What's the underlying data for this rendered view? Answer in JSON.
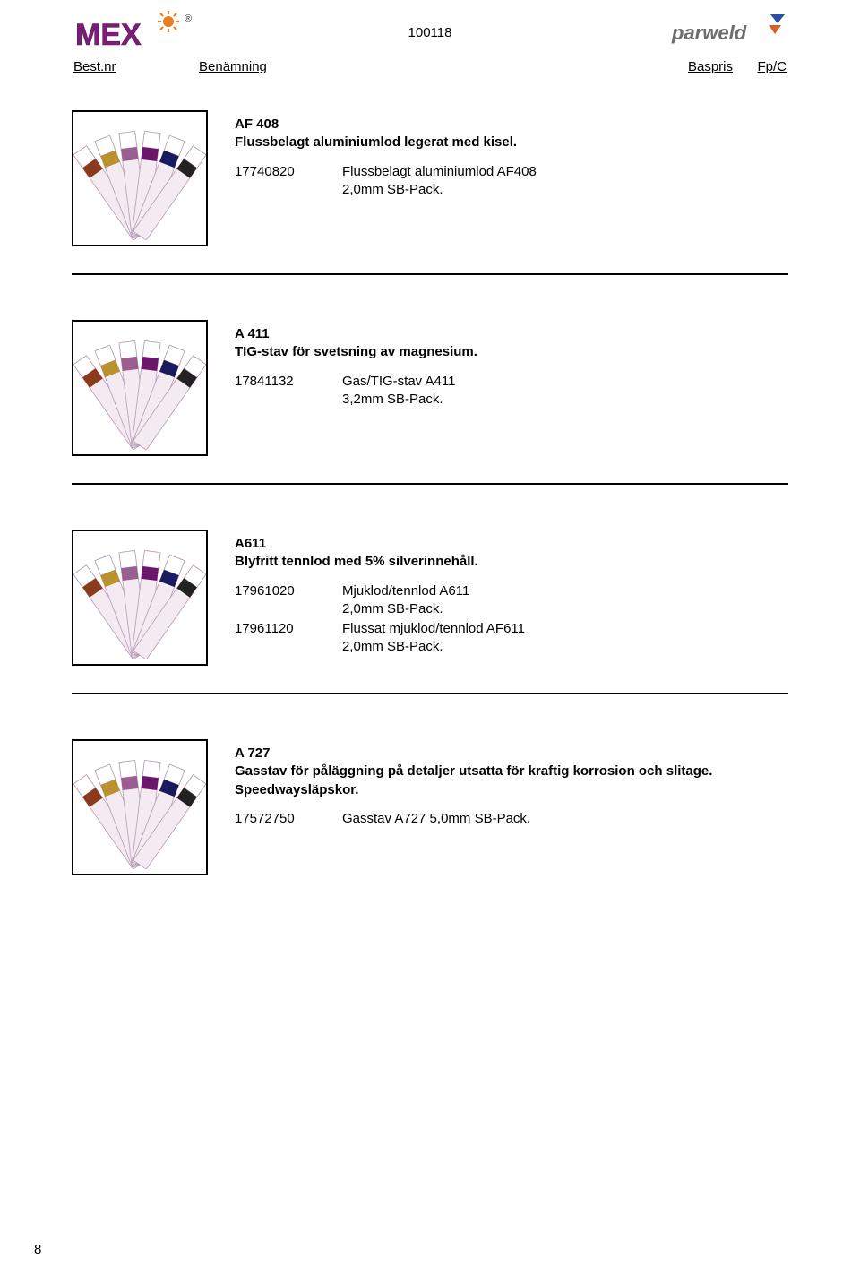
{
  "header": {
    "doc_id": "100118",
    "left_logo_text": "MEX",
    "right_logo_text": "parweld",
    "columns": {
      "c1": "Best.nr",
      "c2": "Benämning",
      "c3": "Baspris",
      "c4": "Fp/C"
    }
  },
  "sections": [
    {
      "title": "AF 408",
      "desc": "Flussbelagt aluminiumlod legerat med kisel.",
      "rows": [
        {
          "art": "17740820",
          "desc": "Flussbelagt aluminiumlod AF408\n2,0mm SB-Pack."
        }
      ]
    },
    {
      "title": "A 411",
      "desc": "TIG-stav för svetsning av magnesium.",
      "rows": [
        {
          "art": "17841132",
          "desc": "Gas/TIG-stav A411\n3,2mm SB-Pack."
        }
      ]
    },
    {
      "title": "A611",
      "desc": "Blyfritt tennlod med 5% silverinnehåll.",
      "rows": [
        {
          "art": "17961020",
          "desc": "Mjuklod/tennlod A611\n2,0mm SB-Pack."
        },
        {
          "art": "17961120",
          "desc": "Flussat mjuklod/tennlod AF611\n2,0mm SB-Pack."
        }
      ]
    },
    {
      "title": "A 727",
      "desc": "Gasstav för påläggning på detaljer utsatta för kraftig korrosion och slitage. Speedwaysläpskor.",
      "rows": [
        {
          "art": "17572750",
          "desc": "Gasstav A727 5,0mm SB-Pack."
        }
      ]
    }
  ],
  "page_number": "8",
  "thumb_svg": {
    "strip_fill": "#f3eaf2",
    "strip_stroke": "#b79ab7",
    "band_colors": [
      "#8b3a1c",
      "#b9912d",
      "#9b5f8f",
      "#6b156b",
      "#1a1a5e",
      "#222"
    ]
  },
  "logo_colors": {
    "mex_fill": "#7a1f78",
    "mex_stroke": "#5e145c",
    "spark": "#e97f1c",
    "parweld_text": "#6d6d70",
    "parweld_accent1": "#2a4fa0",
    "parweld_accent2": "#d2632a"
  }
}
